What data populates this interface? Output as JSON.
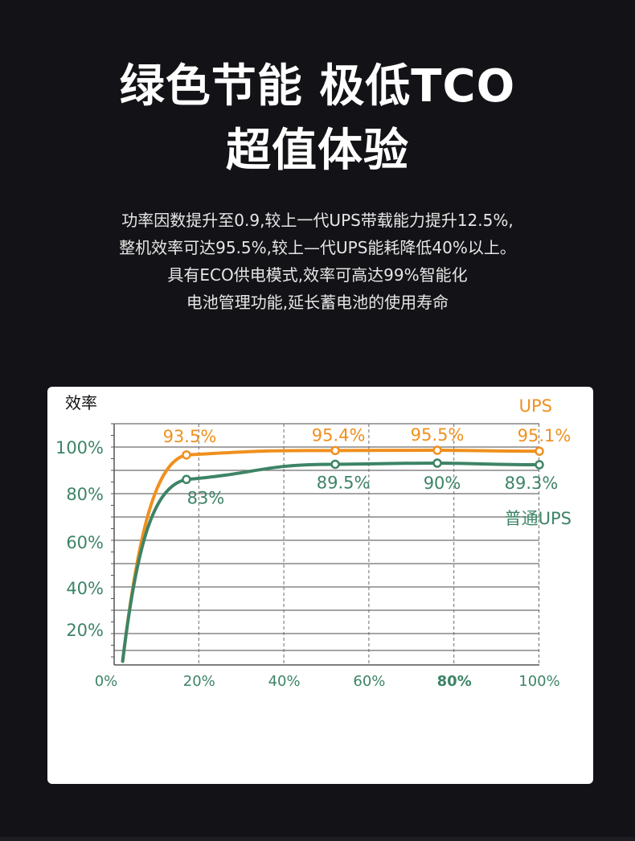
{
  "header": {
    "title_line1": "绿色节能 极低TCO",
    "title_line2": "超值体验"
  },
  "description": [
    "功率因数提升至0.9,较上一代UPS带载能力提升12.5%,",
    "整机效率可达95.5%,较上—代UPS能耗降低40%以上。",
    "具有ECO供电模式,效率可高达99%智能化",
    "电池管理功能,延长蓄电池的使用寿命"
  ],
  "colors": {
    "ups": "#f0901e",
    "normal_ups": "#3d8466",
    "grid": "#6e6e6e",
    "axis_label": "#3d8466"
  },
  "chart_data": {
    "type": "line",
    "ylabel": "效率",
    "xlim": [
      0,
      100
    ],
    "x_ticks": [
      "0%",
      "20%",
      "40%",
      "60%",
      "80%",
      "100%"
    ],
    "y_ticks": [
      "20%",
      "40%",
      "60%",
      "80%",
      "100%"
    ],
    "grid": true,
    "legend": "top-right",
    "series": [
      {
        "name": "UPS",
        "x": [
          2,
          17,
          52,
          76,
          100
        ],
        "values": [
          5,
          93.5,
          95.4,
          95.5,
          95.1
        ],
        "labels": [
          "",
          "93.5%",
          "95.4%",
          "95.5%",
          "95.1%"
        ]
      },
      {
        "name": "普通UPS",
        "x": [
          2,
          17,
          52,
          76,
          100
        ],
        "values": [
          5,
          83,
          89.5,
          90,
          89.3
        ],
        "labels": [
          "",
          "83%",
          "89.5%",
          "90%",
          "89.3%"
        ]
      }
    ]
  }
}
